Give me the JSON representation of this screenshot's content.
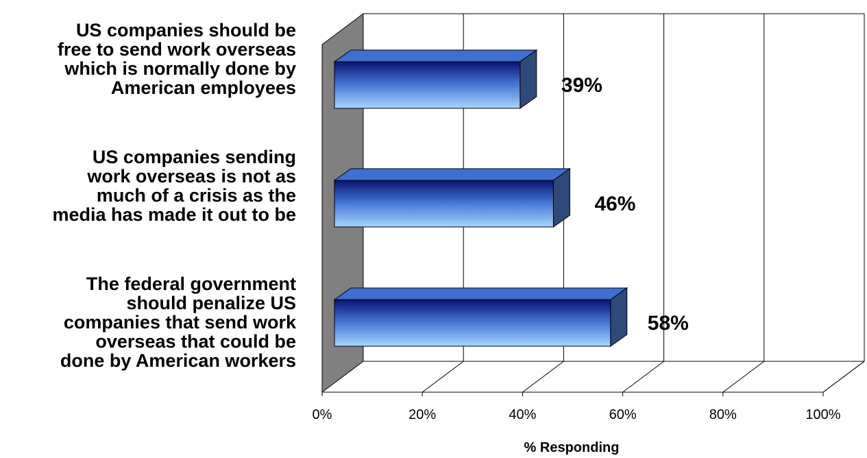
{
  "chart_data": {
    "type": "bar",
    "orientation": "horizontal",
    "style": "3d",
    "categories": [
      "US companies should be free to send work overseas which is normally done by American employees",
      "US companies sending work overseas is not as much of a crisis as the media has made it out to be",
      "The federal government should penalize US companies that send work overseas that could be done by American workers"
    ],
    "category_lines": [
      [
        "US companies should be",
        "free to send work overseas",
        "which is normally done by",
        "American employees"
      ],
      [
        "US companies sending",
        "work overseas is not as",
        "much of a crisis as the",
        "media has made it out to be"
      ],
      [
        "The federal government",
        "should penalize US",
        "companies that send work",
        "overseas that could be",
        "done by American workers"
      ]
    ],
    "values": [
      39,
      46,
      58
    ],
    "data_labels": [
      "39%",
      "46%",
      "58%"
    ],
    "xlabel": "% Responding",
    "ylabel": "",
    "xlim": [
      0,
      100
    ],
    "xticks": [
      0,
      20,
      40,
      60,
      80,
      100
    ],
    "xtick_labels": [
      "0%",
      "20%",
      "40%",
      "60%",
      "80%",
      "100%"
    ],
    "grid": true,
    "legend": "none",
    "colors": {
      "bar_dark": "#0a1470",
      "bar_mid": "#3f6fd0",
      "bar_light": "#a8d4ff",
      "bar_side": "#2f4a78",
      "wall_side": "#808080",
      "gridline": "#000000"
    }
  }
}
